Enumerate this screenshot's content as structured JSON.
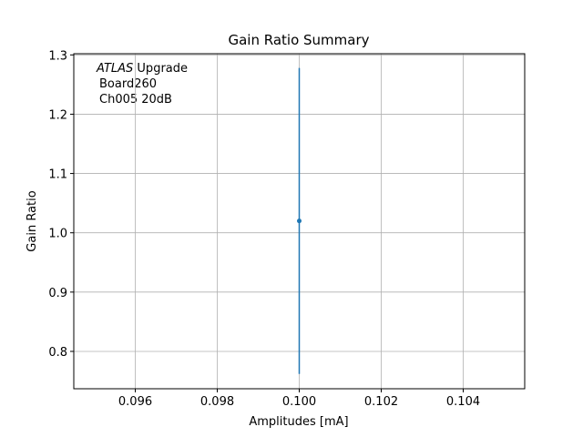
{
  "chart_data": {
    "type": "errorbar",
    "title": "Gain Ratio Summary",
    "x_label": "Amplitudes [mA]",
    "y_label": "Gain Ratio",
    "annotation": {
      "italic": "ATLAS",
      "rest": "Upgrade",
      "lines": [
        "Board260",
        "Ch005 20dB"
      ]
    },
    "x": [
      0.1
    ],
    "series": [
      {
        "color": "#1f77b4",
        "values": [
          1.02
        ],
        "errors": [
          0.258
        ]
      }
    ],
    "xlim": [
      0.0945,
      0.1055
    ],
    "xticks": [
      0.096,
      0.098,
      {
        "value": 0.1,
        "label": "0.100"
      },
      0.102,
      0.104
    ],
    "ylim": [
      0.737,
      1.302
    ],
    "yticks": [
      0.8,
      0.9,
      {
        "value": 1,
        "label": "1.0"
      },
      1.1,
      1.2,
      1.3
    ],
    "grid": true
  }
}
